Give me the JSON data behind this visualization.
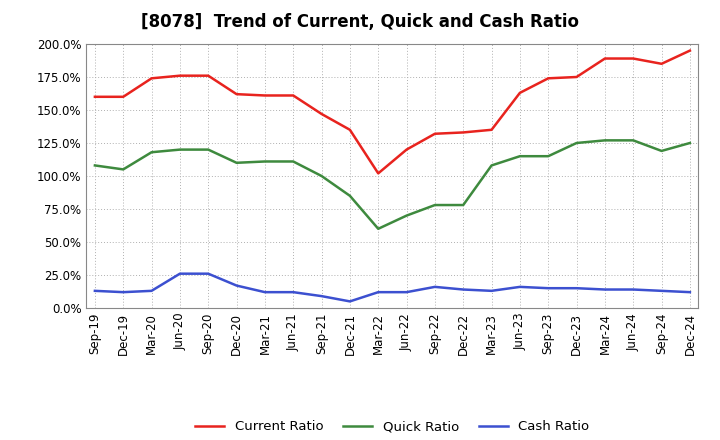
{
  "title": "[8078]  Trend of Current, Quick and Cash Ratio",
  "x_labels": [
    "Sep-19",
    "Dec-19",
    "Mar-20",
    "Jun-20",
    "Sep-20",
    "Dec-20",
    "Mar-21",
    "Jun-21",
    "Sep-21",
    "Dec-21",
    "Mar-22",
    "Jun-22",
    "Sep-22",
    "Dec-22",
    "Mar-23",
    "Jun-23",
    "Sep-23",
    "Dec-23",
    "Mar-24",
    "Jun-24",
    "Sep-24",
    "Dec-24"
  ],
  "current_ratio": [
    1.6,
    1.6,
    1.74,
    1.76,
    1.76,
    1.62,
    1.61,
    1.61,
    1.47,
    1.35,
    1.02,
    1.2,
    1.32,
    1.33,
    1.35,
    1.63,
    1.74,
    1.75,
    1.89,
    1.89,
    1.85,
    1.95
  ],
  "quick_ratio": [
    1.08,
    1.05,
    1.18,
    1.2,
    1.2,
    1.1,
    1.11,
    1.11,
    1.0,
    0.85,
    0.6,
    0.7,
    0.78,
    0.78,
    1.08,
    1.15,
    1.15,
    1.25,
    1.27,
    1.27,
    1.19,
    1.25
  ],
  "cash_ratio": [
    0.13,
    0.12,
    0.13,
    0.26,
    0.26,
    0.17,
    0.12,
    0.12,
    0.09,
    0.05,
    0.12,
    0.12,
    0.16,
    0.14,
    0.13,
    0.16,
    0.15,
    0.15,
    0.14,
    0.14,
    0.13,
    0.12
  ],
  "current_color": "#e8231e",
  "quick_color": "#3e8a3e",
  "cash_color": "#3c50d0",
  "line_width": 1.8,
  "background_color": "#ffffff",
  "grid_color": "#b0b0b0",
  "title_fontsize": 12,
  "legend_fontsize": 9.5,
  "tick_fontsize": 8.5,
  "yticks": [
    0.0,
    0.25,
    0.5,
    0.75,
    1.0,
    1.25,
    1.5,
    1.75,
    2.0
  ]
}
